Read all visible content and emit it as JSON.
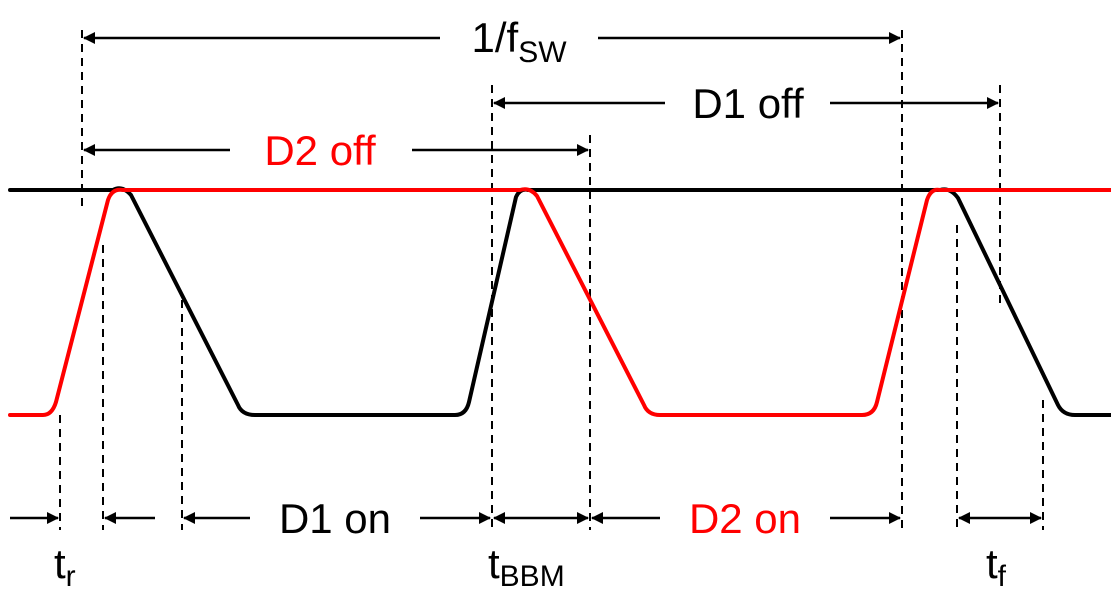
{
  "colors": {
    "black_trace": "#000000",
    "red_trace": "#ff0000",
    "annotation": "#000000",
    "background": "#ffffff"
  },
  "labels": {
    "period": {
      "main": "1/f",
      "sub": "SW"
    },
    "d1_off": "D1 off",
    "d2_off": "D2 off",
    "d1_on": "D1 on",
    "d2_on": "D2 on",
    "t_rise": {
      "main": "t",
      "sub": "r"
    },
    "t_bbm": {
      "main": "t",
      "sub": "BBM"
    },
    "t_fall": {
      "main": "t",
      "sub": "f"
    }
  }
}
